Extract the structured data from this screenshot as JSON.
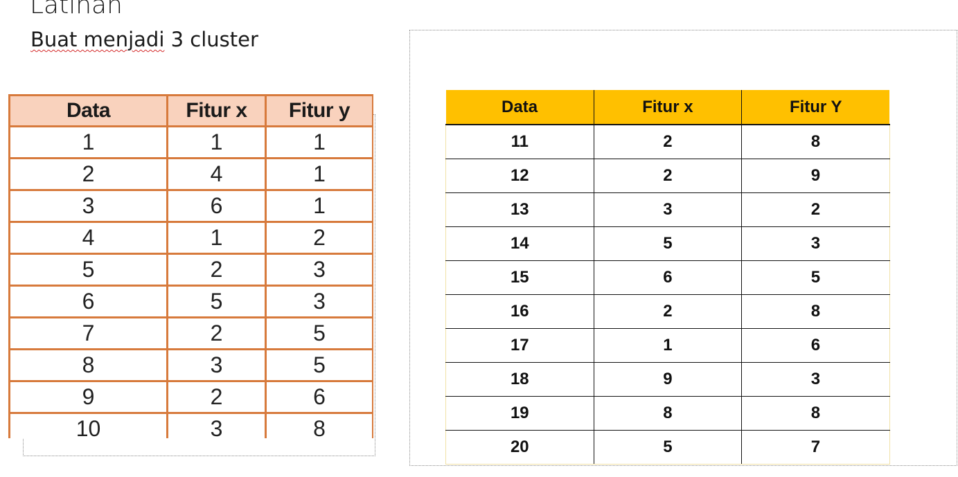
{
  "slide": {
    "title": "Latihan",
    "subtitle_misspelled": "Buat menjadi",
    "subtitle_rest": " 3 cluster"
  },
  "left_table": {
    "headers": [
      "Data",
      "Fitur x",
      "Fitur y"
    ],
    "rows": [
      [
        "1",
        "1",
        "1"
      ],
      [
        "2",
        "4",
        "1"
      ],
      [
        "3",
        "6",
        "1"
      ],
      [
        "4",
        "1",
        "2"
      ],
      [
        "5",
        "2",
        "3"
      ],
      [
        "6",
        "5",
        "3"
      ],
      [
        "7",
        "2",
        "5"
      ],
      [
        "8",
        "3",
        "5"
      ],
      [
        "9",
        "2",
        "6"
      ],
      [
        "10",
        "3",
        "8"
      ]
    ]
  },
  "right_table": {
    "headers": [
      "Data",
      "Fitur x",
      "Fitur Y"
    ],
    "rows": [
      [
        "11",
        "2",
        "8"
      ],
      [
        "12",
        "2",
        "9"
      ],
      [
        "13",
        "3",
        "2"
      ],
      [
        "14",
        "5",
        "3"
      ],
      [
        "15",
        "6",
        "5"
      ],
      [
        "16",
        "2",
        "8"
      ],
      [
        "17",
        "1",
        "6"
      ],
      [
        "18",
        "9",
        "3"
      ],
      [
        "19",
        "8",
        "8"
      ],
      [
        "20",
        "5",
        "7"
      ]
    ],
    "header_color": "#ffc000"
  },
  "left_table_colors": {
    "header_bg": "#f9d2bd",
    "grid": "#d77a3c"
  }
}
